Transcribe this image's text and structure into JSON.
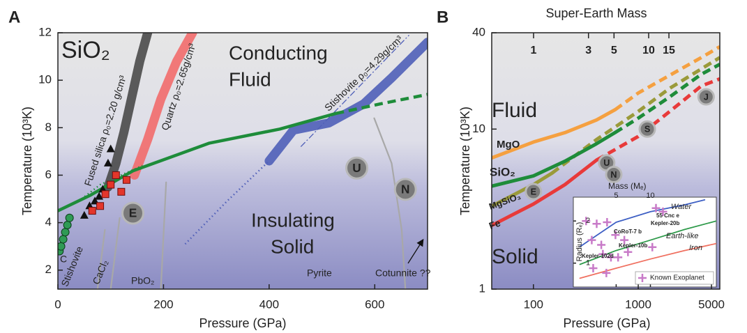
{
  "chart_data": [
    {
      "type": "line",
      "panel": "A",
      "title": "SiO₂",
      "xlabel": "Pressure (GPa)",
      "ylabel": "Temperature (10³K)",
      "xlim": [
        0,
        700
      ],
      "ylim": [
        1.2,
        12
      ],
      "xticks": [
        0,
        200,
        400,
        600
      ],
      "yticks": [
        2,
        4,
        6,
        8,
        10,
        12
      ],
      "series": [
        {
          "color": "#a8a8a8",
          "style": "thin",
          "x": [
            75,
            89
          ],
          "values": [
            1.2,
            3.7
          ]
        },
        {
          "color": "#a8a8a8",
          "style": "thin",
          "x": [
            100,
            117
          ],
          "values": [
            1.2,
            4.2
          ]
        },
        {
          "color": "#a8a8a8",
          "style": "thin",
          "x": [
            195,
            205
          ],
          "values": [
            1.2,
            5.7
          ]
        },
        {
          "color": "#a8a8a8",
          "style": "thin",
          "x": [
            658,
            651,
            632,
            599
          ],
          "values": [
            1.2,
            3.7,
            6.5,
            8.4
          ]
        },
        {
          "name": "Fused silica ρ₀=2.20 g/cm³",
          "color": "#4a4a4a",
          "style": "band",
          "x": [
            95,
            110,
            125,
            140,
            155,
            170
          ],
          "values": [
            5.5,
            6.5,
            7.8,
            9.3,
            10.8,
            12.0
          ]
        },
        {
          "name": "Quartz ρ₀=2.65g/cm³",
          "color": "#f26b6b",
          "style": "band",
          "x": [
            145,
            170,
            195,
            225,
            255
          ],
          "values": [
            6.0,
            7.5,
            9.2,
            10.8,
            12.0
          ]
        },
        {
          "name": "Stishovite ρ₀=4.29g/cm³",
          "color": "#4f5fb8",
          "style": "band",
          "x": [
            400,
            446,
            513,
            579,
            632,
            700
          ],
          "values": [
            6.6,
            7.9,
            8.2,
            9.0,
            10.1,
            11.6
          ]
        },
        {
          "color": "#4f5fb8",
          "style": "dotted",
          "x": [
            241,
            320,
            400
          ],
          "values": [
            3.1,
            4.9,
            6.6
          ]
        },
        {
          "color": "#4f5fb8",
          "style": "dashdot",
          "x": [
            460,
            665
          ],
          "values": [
            7.2,
            11.9
          ]
        },
        {
          "color": "#1e8c3a",
          "style": "solid",
          "x": [
            0,
            62,
            142,
            287,
            420,
            526
          ],
          "values": [
            4.5,
            5.16,
            6.18,
            7.35,
            7.94,
            8.6
          ]
        },
        {
          "color": "#1e8c3a",
          "style": "dashed",
          "x": [
            526,
            610,
            700
          ],
          "values": [
            8.6,
            9.0,
            9.4
          ]
        },
        {
          "color": "#1e8c3a",
          "style": "dotted",
          "x": [
            45,
            80,
            120,
            160
          ],
          "values": [
            5.0,
            5.6,
            6.0,
            6.4
          ]
        },
        {
          "color": "#2f9a55",
          "marker": "circle",
          "x": [
            3,
            6,
            10,
            14,
            18,
            22
          ],
          "values": [
            2.8,
            3.0,
            3.3,
            3.6,
            3.9,
            4.2
          ]
        },
        {
          "color": "#111111",
          "marker": "triangle",
          "x": [
            50,
            60,
            70,
            78,
            85,
            95,
            100
          ],
          "values": [
            4.3,
            4.7,
            4.9,
            5.1,
            5.4,
            6.5,
            7.1
          ]
        },
        {
          "color": "#e3362b",
          "marker": "square",
          "x": [
            65,
            80,
            90,
            100,
            110,
            120,
            130
          ],
          "values": [
            4.5,
            4.7,
            5.2,
            5.6,
            6.0,
            5.3,
            5.8
          ]
        }
      ],
      "planets": {
        "labels": [
          "E",
          "U",
          "N"
        ],
        "x": [
          142,
          566,
          658
        ],
        "values": [
          4.4,
          6.3,
          5.4
        ]
      },
      "annotations": [
        "Conducting",
        "Fluid",
        "Insulating",
        "Solid",
        "Stishovite",
        "CaCl₂",
        "PbO₂",
        "Pyrite",
        "Cotunnite ??",
        "C"
      ]
    },
    {
      "type": "line",
      "panel": "B",
      "title": "Super-Earth Mass",
      "xlabel": "Pressure (GPa)",
      "ylabel": "Temperature (10³K)",
      "xscale": "log",
      "yscale": "log",
      "xlim": [
        40,
        6000
      ],
      "ylim": [
        1,
        40
      ],
      "xticks": [
        100,
        1000,
        5000
      ],
      "yticks": [
        1,
        10,
        40
      ],
      "x2scale": "log",
      "x2lim": [
        0.433,
        41.5
      ],
      "x2ticks": [
        1,
        3,
        5,
        10,
        15
      ],
      "series": [
        {
          "name": "MgO",
          "color": "#f5a040",
          "style": "solid",
          "x": [
            40,
            100,
            200,
            400,
            600
          ],
          "values": [
            6.6,
            8.3,
            9.5,
            11.4,
            13.2
          ]
        },
        {
          "color": "#f5a040",
          "style": "dashed",
          "x": [
            600,
            1000,
            2000,
            4000,
            6000
          ],
          "values": [
            13.2,
            16.8,
            21.7,
            28,
            32.7
          ]
        },
        {
          "name": "MgSiO₃",
          "color": "#9a9a3a",
          "style": "solid",
          "x": [
            40,
            100,
            150
          ],
          "values": [
            3.3,
            4.5,
            5.3
          ]
        },
        {
          "color": "#9a9a3a",
          "style": "dashed",
          "x": [
            150,
            400,
            1000,
            2000,
            6000
          ],
          "values": [
            5.3,
            8.6,
            12.9,
            18,
            28
          ]
        },
        {
          "name": "SiO₂",
          "color": "#1e8c3a",
          "style": "solid",
          "x": [
            40,
            100,
            200,
            400,
            600
          ],
          "values": [
            4.4,
            5.1,
            6.3,
            8.1,
            9.5
          ]
        },
        {
          "color": "#1e8c3a",
          "style": "dashed",
          "x": [
            600,
            1000,
            2000,
            4000,
            6000
          ],
          "values": [
            9.5,
            11.7,
            15.9,
            22,
            25.4
          ]
        },
        {
          "name": "Fe",
          "color": "#e83a3a",
          "style": "solid",
          "x": [
            40,
            100,
            200,
            400
          ],
          "values": [
            2.5,
            3.4,
            4.5,
            6.4
          ]
        },
        {
          "color": "#e83a3a",
          "style": "dashed",
          "x": [
            400,
            1000,
            2000,
            4000,
            6000
          ],
          "values": [
            6.4,
            9.0,
            12.9,
            18.6,
            20.6
          ]
        }
      ],
      "planets": {
        "labels": [
          "E",
          "U",
          "N",
          "S",
          "J"
        ],
        "x": [
          100,
          500,
          584,
          1220,
          4440
        ],
        "values": [
          4.07,
          6.15,
          5.2,
          10,
          15.9
        ]
      },
      "annotations": [
        "Fluid",
        "Solid"
      ],
      "inset": {
        "type": "line",
        "xlabel": "Mass (Mₑ)",
        "ylabel": "Radius (Rₑ)",
        "xscale": "log",
        "yscale": "log",
        "xlim": [
          2.1,
          38
        ],
        "ylim": [
          0.675,
          2.96
        ],
        "xticks": [
          5,
          10
        ],
        "yticks": [
          1,
          2
        ],
        "legend": "lower right",
        "series": [
          {
            "name": "Water",
            "color": "#3d5fc4",
            "style": "thin",
            "x": [
              2.4,
              5,
              10,
              20,
              30
            ],
            "values": [
              1.31,
              1.96,
              2.33,
              2.61,
              2.83
            ]
          },
          {
            "name": "Earth-like",
            "color": "#2e9a4a",
            "style": "thin",
            "x": [
              2.4,
              5,
              10,
              20,
              38
            ],
            "values": [
              0.98,
              1.23,
              1.46,
              1.74,
              2.0
            ]
          },
          {
            "name": "Iron",
            "color": "#f07060",
            "style": "thin",
            "x": [
              2.4,
              5,
              10,
              20,
              38
            ],
            "values": [
              0.78,
              0.92,
              1.07,
              1.23,
              1.38
            ]
          },
          {
            "name": "Known Exoplanet",
            "color": "#c87ac8",
            "marker": "plus",
            "x": [
              2.72,
              3.37,
              4.16,
              3.05,
              3.7,
              4.93,
              5.9,
              3.82,
              4.5,
              6.35,
              10.4,
              3.14,
              4.1,
              11.2,
              12.9,
              5.2
            ],
            "values": [
              2.0,
              1.91,
              1.96,
              1.46,
              1.35,
              1.59,
              1.46,
              1.16,
              1.1,
              1.2,
              1.3,
              0.92,
              0.85,
              2.47,
              2.33,
              1.1
            ]
          }
        ],
        "annotations": [
          "55 Cnc e",
          "Kepler-20b",
          "CoRoT-7 b",
          "Kepler-10b",
          "Kepler-102d"
        ]
      }
    }
  ]
}
